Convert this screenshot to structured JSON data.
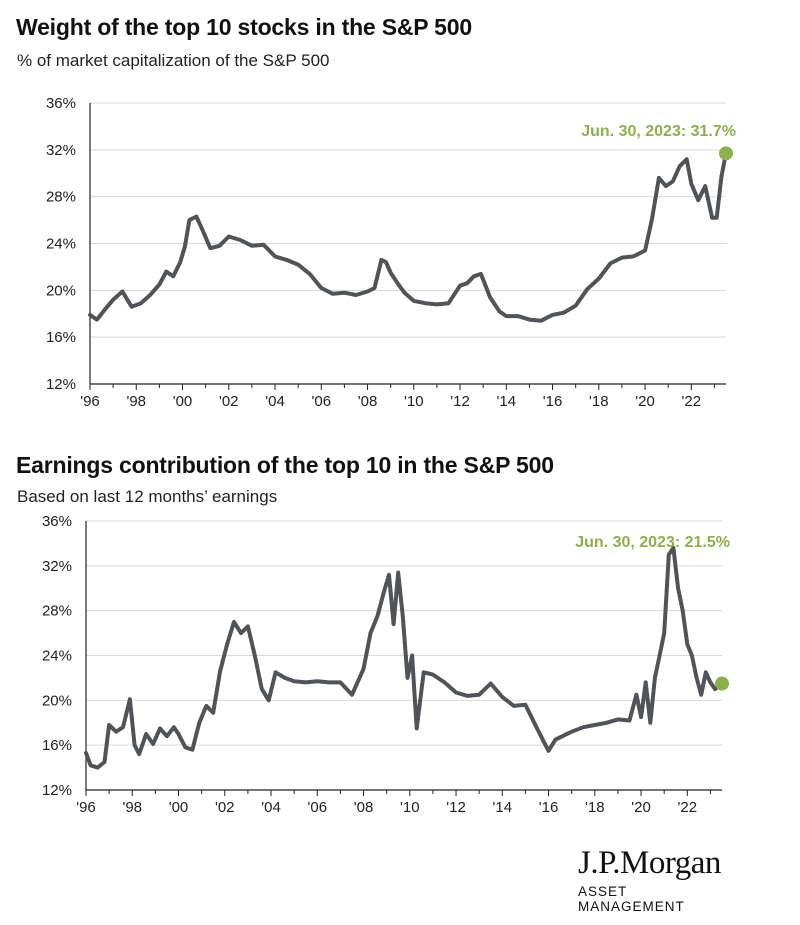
{
  "colors": {
    "line": "#505458",
    "accent": "#8DB04A",
    "grid": "#d9d9d9",
    "axis": "#222222"
  },
  "chart_data": [
    {
      "type": "line",
      "title": "Weight of the top 10 stocks in the S&P 500",
      "subtitle": "% of market capitalization of the S&P 500",
      "xlabel": "",
      "ylabel": "",
      "xlim": [
        1996,
        2023.5
      ],
      "ylim": [
        12,
        36
      ],
      "y_ticks": [
        "12%",
        "16%",
        "20%",
        "24%",
        "28%",
        "32%",
        "36%"
      ],
      "x_ticks": [
        "'96",
        "'98",
        "'00",
        "'02",
        "'04",
        "'06",
        "'08",
        "'10",
        "'12",
        "'14",
        "'16",
        "'18",
        "'20",
        "'22"
      ],
      "annotation": "Jun. 30, 2023: 31.7%",
      "endpoint": [
        2023.5,
        31.7
      ],
      "series": [
        {
          "name": "Top 10 weight",
          "x": [
            1996,
            1996.3,
            1996.7,
            1997,
            1997.4,
            1997.8,
            1998.2,
            1998.6,
            1999,
            1999.3,
            1999.6,
            1999.9,
            2000.1,
            2000.3,
            2000.6,
            2000.9,
            2001.2,
            2001.6,
            2002,
            2002.5,
            2003,
            2003.5,
            2004,
            2004.5,
            2005,
            2005.5,
            2006,
            2006.5,
            2007,
            2007.5,
            2008,
            2008.3,
            2008.6,
            2008.8,
            2009,
            2009.3,
            2009.6,
            2010,
            2010.5,
            2011,
            2011.5,
            2012,
            2012.3,
            2012.6,
            2012.9,
            2013.3,
            2013.7,
            2014,
            2014.5,
            2015,
            2015.5,
            2016,
            2016.5,
            2017,
            2017.5,
            2018,
            2018.5,
            2019,
            2019.5,
            2020,
            2020.3,
            2020.6,
            2020.9,
            2021.2,
            2021.5,
            2021.8,
            2022,
            2022.3,
            2022.6,
            2022.9,
            2023.1,
            2023.3,
            2023.5
          ],
          "values": [
            17.9,
            17.5,
            18.5,
            19.2,
            19.9,
            18.6,
            18.9,
            19.6,
            20.5,
            21.6,
            21.2,
            22.4,
            23.7,
            26.0,
            26.3,
            25.0,
            23.6,
            23.8,
            24.6,
            24.3,
            23.8,
            23.9,
            22.9,
            22.6,
            22.2,
            21.4,
            20.2,
            19.7,
            19.8,
            19.6,
            19.9,
            20.2,
            22.6,
            22.4,
            21.5,
            20.6,
            19.8,
            19.1,
            18.9,
            18.8,
            18.9,
            20.4,
            20.6,
            21.2,
            21.4,
            19.4,
            18.2,
            17.8,
            17.8,
            17.5,
            17.4,
            17.9,
            18.1,
            18.7,
            20.1,
            21.0,
            22.3,
            22.8,
            22.9,
            23.4,
            26.1,
            29.6,
            28.9,
            29.3,
            30.6,
            31.2,
            29.1,
            27.7,
            28.9,
            26.2,
            26.2,
            29.7,
            31.7
          ]
        }
      ]
    },
    {
      "type": "line",
      "title": "Earnings contribution of the top 10 in the S&P 500",
      "subtitle": "Based on last 12 months’ earnings",
      "xlabel": "",
      "ylabel": "",
      "xlim": [
        1996,
        2023.5
      ],
      "ylim": [
        12,
        36
      ],
      "y_ticks": [
        "12%",
        "16%",
        "20%",
        "24%",
        "28%",
        "32%",
        "36%"
      ],
      "x_ticks": [
        "'96",
        "'98",
        "'00",
        "'02",
        "'04",
        "'06",
        "'08",
        "'10",
        "'12",
        "'14",
        "'16",
        "'18",
        "'20",
        "'22"
      ],
      "annotation": "Jun. 30, 2023: 21.5%",
      "endpoint": [
        2023.5,
        21.5
      ],
      "series": [
        {
          "name": "Top 10 earnings contribution",
          "x": [
            1996,
            1996.2,
            1996.5,
            1996.8,
            1997,
            1997.3,
            1997.6,
            1997.9,
            1998.1,
            1998.3,
            1998.6,
            1998.9,
            1999.2,
            1999.5,
            1999.8,
            2000,
            2000.3,
            2000.6,
            2000.9,
            2001.2,
            2001.5,
            2001.8,
            2002.1,
            2002.4,
            2002.7,
            2003,
            2003.3,
            2003.6,
            2003.9,
            2004.2,
            2004.6,
            2005,
            2005.5,
            2006,
            2006.5,
            2007,
            2007.5,
            2008,
            2008.3,
            2008.6,
            2008.9,
            2009.1,
            2009.3,
            2009.5,
            2009.7,
            2009.9,
            2010.1,
            2010.3,
            2010.6,
            2011,
            2011.5,
            2012,
            2012.5,
            2013,
            2013.5,
            2014,
            2014.5,
            2015,
            2015.5,
            2016,
            2016.3,
            2016.6,
            2017,
            2017.5,
            2018,
            2018.5,
            2019,
            2019.5,
            2019.8,
            2020,
            2020.2,
            2020.4,
            2020.6,
            2020.8,
            2021,
            2021.2,
            2021.4,
            2021.6,
            2021.8,
            2022,
            2022.2,
            2022.4,
            2022.6,
            2022.8,
            2023,
            2023.2,
            2023.5
          ],
          "values": [
            15.3,
            14.2,
            14.0,
            14.5,
            17.8,
            17.2,
            17.6,
            20.1,
            16.0,
            15.2,
            17.0,
            16.1,
            17.5,
            16.8,
            17.6,
            17.0,
            15.8,
            15.6,
            18.0,
            19.5,
            18.9,
            22.6,
            25.0,
            27.0,
            26.0,
            26.6,
            24.0,
            21.0,
            20.0,
            22.5,
            22.0,
            21.7,
            21.6,
            21.7,
            21.6,
            21.6,
            20.5,
            22.8,
            26.0,
            27.5,
            29.8,
            31.2,
            26.8,
            31.4,
            27.5,
            22.0,
            24.0,
            17.5,
            22.5,
            22.3,
            21.6,
            20.7,
            20.4,
            20.5,
            21.5,
            20.3,
            19.5,
            19.6,
            17.5,
            15.5,
            16.5,
            16.8,
            17.2,
            17.6,
            17.8,
            18.0,
            18.3,
            18.2,
            20.5,
            18.5,
            21.6,
            18.0,
            22.0,
            24.0,
            26.0,
            33.0,
            33.6,
            30.0,
            28.0,
            25.0,
            24.0,
            22.0,
            20.5,
            22.5,
            21.6,
            21.0,
            21.5
          ]
        }
      ]
    }
  ],
  "logo": {
    "name": "J.P.Morgan",
    "subtitle": "ASSET MANAGEMENT"
  }
}
